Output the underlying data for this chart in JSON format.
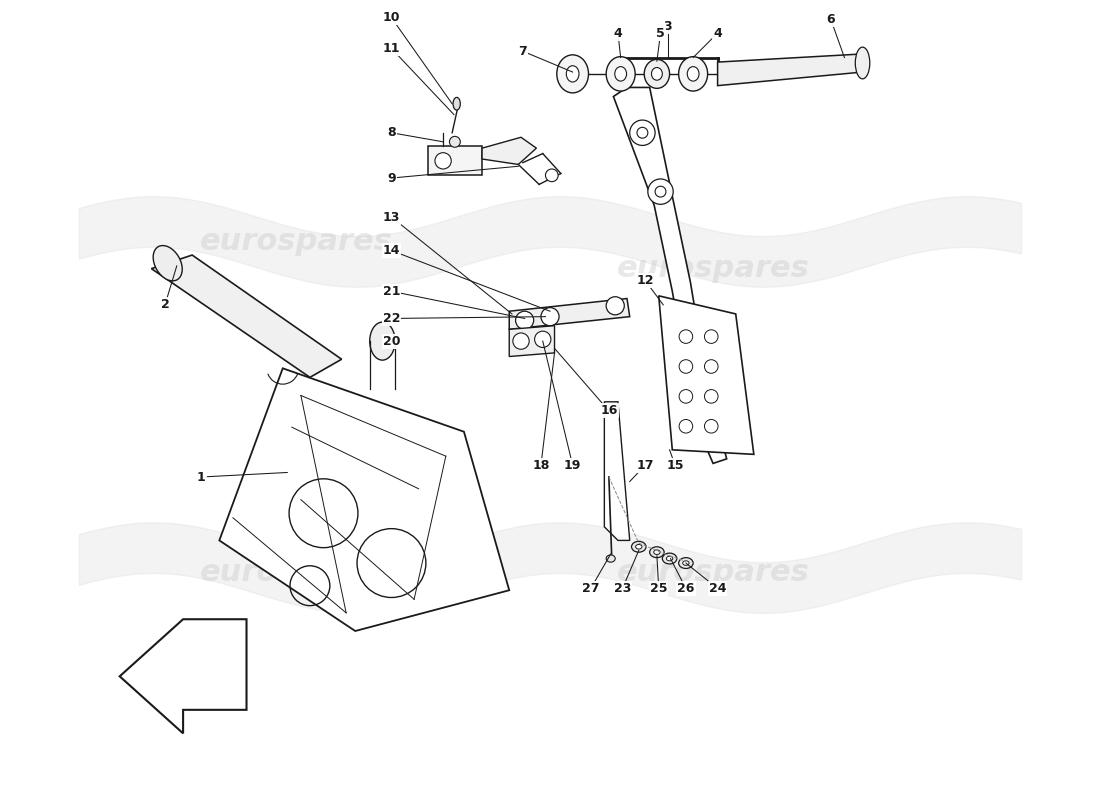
{
  "bg_color": "#ffffff",
  "line_color": "#1a1a1a",
  "watermark_color": "#cccccc",
  "fig_width": 11.0,
  "fig_height": 8.0,
  "dpi": 100,
  "xlim": [
    0,
    11
  ],
  "ylim": [
    0,
    8.8
  ]
}
